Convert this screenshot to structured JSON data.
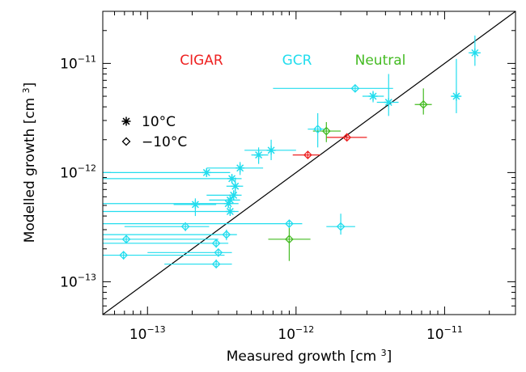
{
  "chart_data": {
    "type": "scatter",
    "xlabel": "Measured growth [cm³]",
    "ylabel": "Modelled growth [cm³]",
    "x_scale": "log",
    "y_scale": "log",
    "xlim": [
      5e-14,
      3e-11
    ],
    "ylim": [
      5e-14,
      3e-11
    ],
    "x_ticks": [
      {
        "value": 1e-13,
        "base": "10",
        "exp": "−13"
      },
      {
        "value": 1e-12,
        "base": "10",
        "exp": "−12"
      },
      {
        "value": 1e-11,
        "base": "10",
        "exp": "−11"
      }
    ],
    "y_ticks": [
      {
        "value": 1e-13,
        "base": "10",
        "exp": "−13"
      },
      {
        "value": 1e-12,
        "base": "10",
        "exp": "−12"
      },
      {
        "value": 1e-11,
        "base": "10",
        "exp": "−11"
      }
    ],
    "reference_line": "y = x",
    "grid": false,
    "color_legend": [
      {
        "label": "CIGAR",
        "color": "#ee2222"
      },
      {
        "label": "GCR",
        "color": "#22ddee"
      },
      {
        "label": "Neutral",
        "color": "#44bb22"
      }
    ],
    "marker_legend": [
      {
        "label": "10°C",
        "marker": "asterisk"
      },
      {
        "label": "−10°C",
        "marker": "diamond"
      }
    ],
    "series": [
      {
        "name": "GCR",
        "color": "#22ddee",
        "points": [
          {
            "x": 1.6e-11,
            "y": 1.25e-11,
            "xlo": 1.45e-11,
            "xhi": 1.75e-11,
            "ylo": 9.5e-12,
            "yhi": 1.8e-11,
            "marker": "asterisk"
          },
          {
            "x": 1.2e-11,
            "y": 5e-12,
            "xlo": 1.1e-11,
            "xhi": 1.3e-11,
            "ylo": 3.5e-12,
            "yhi": 1.1e-11,
            "marker": "asterisk"
          },
          {
            "x": 3.3e-12,
            "y": 5e-12,
            "xlo": 2.8e-12,
            "xhi": 3.9e-12,
            "ylo": 4.4e-12,
            "yhi": 5.6e-12,
            "marker": "asterisk"
          },
          {
            "x": 4.2e-12,
            "y": 4.4e-12,
            "xlo": 3.5e-12,
            "xhi": 4.9e-12,
            "ylo": 3.3e-12,
            "yhi": 8e-12,
            "marker": "asterisk"
          },
          {
            "x": 2.5e-12,
            "y": 5.9e-12,
            "xlo": 7e-13,
            "xhi": 4.5e-12,
            "ylo": 5.5e-12,
            "yhi": 6.3e-12,
            "marker": "diamond"
          },
          {
            "x": 1.4e-12,
            "y": 2.5e-12,
            "xlo": 1.2e-12,
            "xhi": 1.6e-12,
            "ylo": 1.7e-12,
            "yhi": 3.5e-12,
            "marker": "diamond"
          },
          {
            "x": 6.8e-13,
            "y": 1.6e-12,
            "xlo": 4.5e-13,
            "xhi": 1e-12,
            "ylo": 1.3e-12,
            "yhi": 2e-12,
            "marker": "asterisk"
          },
          {
            "x": 5.6e-13,
            "y": 1.45e-12,
            "xlo": 5e-13,
            "xhi": 6.5e-13,
            "ylo": 1.2e-12,
            "yhi": 1.7e-12,
            "marker": "asterisk"
          },
          {
            "x": 2.5e-13,
            "y": 1e-12,
            "xlo": 5e-14,
            "xhi": 3.6e-13,
            "ylo": 9.2e-13,
            "yhi": 1.08e-12,
            "marker": "asterisk"
          },
          {
            "x": 4.2e-13,
            "y": 1.1e-12,
            "xlo": 2.5e-13,
            "xhi": 6e-13,
            "ylo": 9.5e-13,
            "yhi": 1.25e-12,
            "marker": "asterisk"
          },
          {
            "x": 3.7e-13,
            "y": 8.8e-13,
            "xlo": 5e-14,
            "xhi": 4.3e-13,
            "ylo": 8e-13,
            "yhi": 9.7e-13,
            "marker": "asterisk"
          },
          {
            "x": 3.9e-13,
            "y": 7.5e-13,
            "xlo": 3.4e-13,
            "xhi": 4.4e-13,
            "ylo": 6.2e-13,
            "yhi": 9e-13,
            "marker": "asterisk"
          },
          {
            "x": 3.8e-13,
            "y": 6.2e-13,
            "xlo": 2.5e-13,
            "xhi": 4.3e-13,
            "ylo": 5.6e-13,
            "yhi": 6.9e-13,
            "marker": "asterisk"
          },
          {
            "x": 3.6e-13,
            "y": 5.6e-13,
            "xlo": 2.6e-13,
            "xhi": 4.2e-13,
            "ylo": 5.2e-13,
            "yhi": 6e-13,
            "marker": "asterisk"
          },
          {
            "x": 3.5e-13,
            "y": 5.2e-13,
            "xlo": 5e-14,
            "xhi": 4.1e-13,
            "ylo": 4.8e-13,
            "yhi": 5.6e-13,
            "marker": "asterisk"
          },
          {
            "x": 2.1e-13,
            "y": 5.1e-13,
            "xlo": 1.5e-13,
            "xhi": 2.9e-13,
            "ylo": 4e-13,
            "yhi": 5.8e-13,
            "marker": "asterisk"
          },
          {
            "x": 3.6e-13,
            "y": 4.4e-13,
            "xlo": 5e-14,
            "xhi": 4.1e-13,
            "ylo": 4.1e-13,
            "yhi": 4.8e-13,
            "marker": "asterisk"
          },
          {
            "x": 1.8e-13,
            "y": 3.2e-13,
            "xlo": 7e-14,
            "xhi": 2.6e-13,
            "ylo": 2.9e-13,
            "yhi": 3.5e-13,
            "marker": "diamond"
          },
          {
            "x": 9e-13,
            "y": 3.4e-13,
            "xlo": 5e-14,
            "xhi": 1.1e-12,
            "ylo": 3.1e-13,
            "yhi": 3.7e-13,
            "marker": "diamond"
          },
          {
            "x": 2e-12,
            "y": 3.2e-13,
            "xlo": 1.6e-12,
            "xhi": 2.5e-12,
            "ylo": 2.7e-13,
            "yhi": 4.2e-13,
            "marker": "diamond"
          },
          {
            "x": 3.4e-13,
            "y": 2.7e-13,
            "xlo": 5e-14,
            "xhi": 4e-13,
            "ylo": 2.4e-13,
            "yhi": 3e-13,
            "marker": "diamond"
          },
          {
            "x": 7.2e-14,
            "y": 2.45e-13,
            "xlo": 5e-14,
            "xhi": 3e-13,
            "ylo": 2.25e-13,
            "yhi": 2.65e-13,
            "marker": "diamond"
          },
          {
            "x": 2.9e-13,
            "y": 2.25e-13,
            "xlo": 5e-14,
            "xhi": 3.5e-13,
            "ylo": 2.05e-13,
            "yhi": 2.45e-13,
            "marker": "diamond"
          },
          {
            "x": 3e-13,
            "y": 1.85e-13,
            "xlo": 1e-13,
            "xhi": 3.7e-13,
            "ylo": 1.7e-13,
            "yhi": 2e-13,
            "marker": "diamond"
          },
          {
            "x": 6.9e-14,
            "y": 1.75e-13,
            "xlo": 5e-14,
            "xhi": 3.3e-13,
            "ylo": 1.6e-13,
            "yhi": 1.9e-13,
            "marker": "diamond"
          },
          {
            "x": 2.9e-13,
            "y": 1.45e-13,
            "xlo": 1.3e-13,
            "xhi": 3.7e-13,
            "ylo": 1.33e-13,
            "yhi": 1.6e-13,
            "marker": "diamond"
          }
        ]
      },
      {
        "name": "CIGAR",
        "color": "#ee2222",
        "points": [
          {
            "x": 2.2e-12,
            "y": 2.1e-12,
            "xlo": 1.6e-12,
            "xhi": 3e-12,
            "ylo": 1.95e-12,
            "yhi": 2.25e-12,
            "marker": "diamond"
          },
          {
            "x": 1.2e-12,
            "y": 1.45e-12,
            "xlo": 9.5e-13,
            "xhi": 1.45e-12,
            "ylo": 1.35e-12,
            "yhi": 1.55e-12,
            "marker": "diamond"
          }
        ]
      },
      {
        "name": "Neutral",
        "color": "#44bb22",
        "points": [
          {
            "x": 7.2e-12,
            "y": 4.2e-12,
            "xlo": 6.3e-12,
            "xhi": 8.2e-12,
            "ylo": 3.4e-12,
            "yhi": 5.9e-12,
            "marker": "diamond"
          },
          {
            "x": 1.6e-12,
            "y": 2.4e-12,
            "xlo": 1.3e-12,
            "xhi": 2e-12,
            "ylo": 1.9e-12,
            "yhi": 2.9e-12,
            "marker": "diamond"
          },
          {
            "x": 9e-13,
            "y": 2.45e-13,
            "xlo": 6.5e-13,
            "xhi": 1.25e-12,
            "ylo": 1.55e-13,
            "yhi": 3.1e-13,
            "marker": "diamond"
          }
        ]
      }
    ]
  }
}
